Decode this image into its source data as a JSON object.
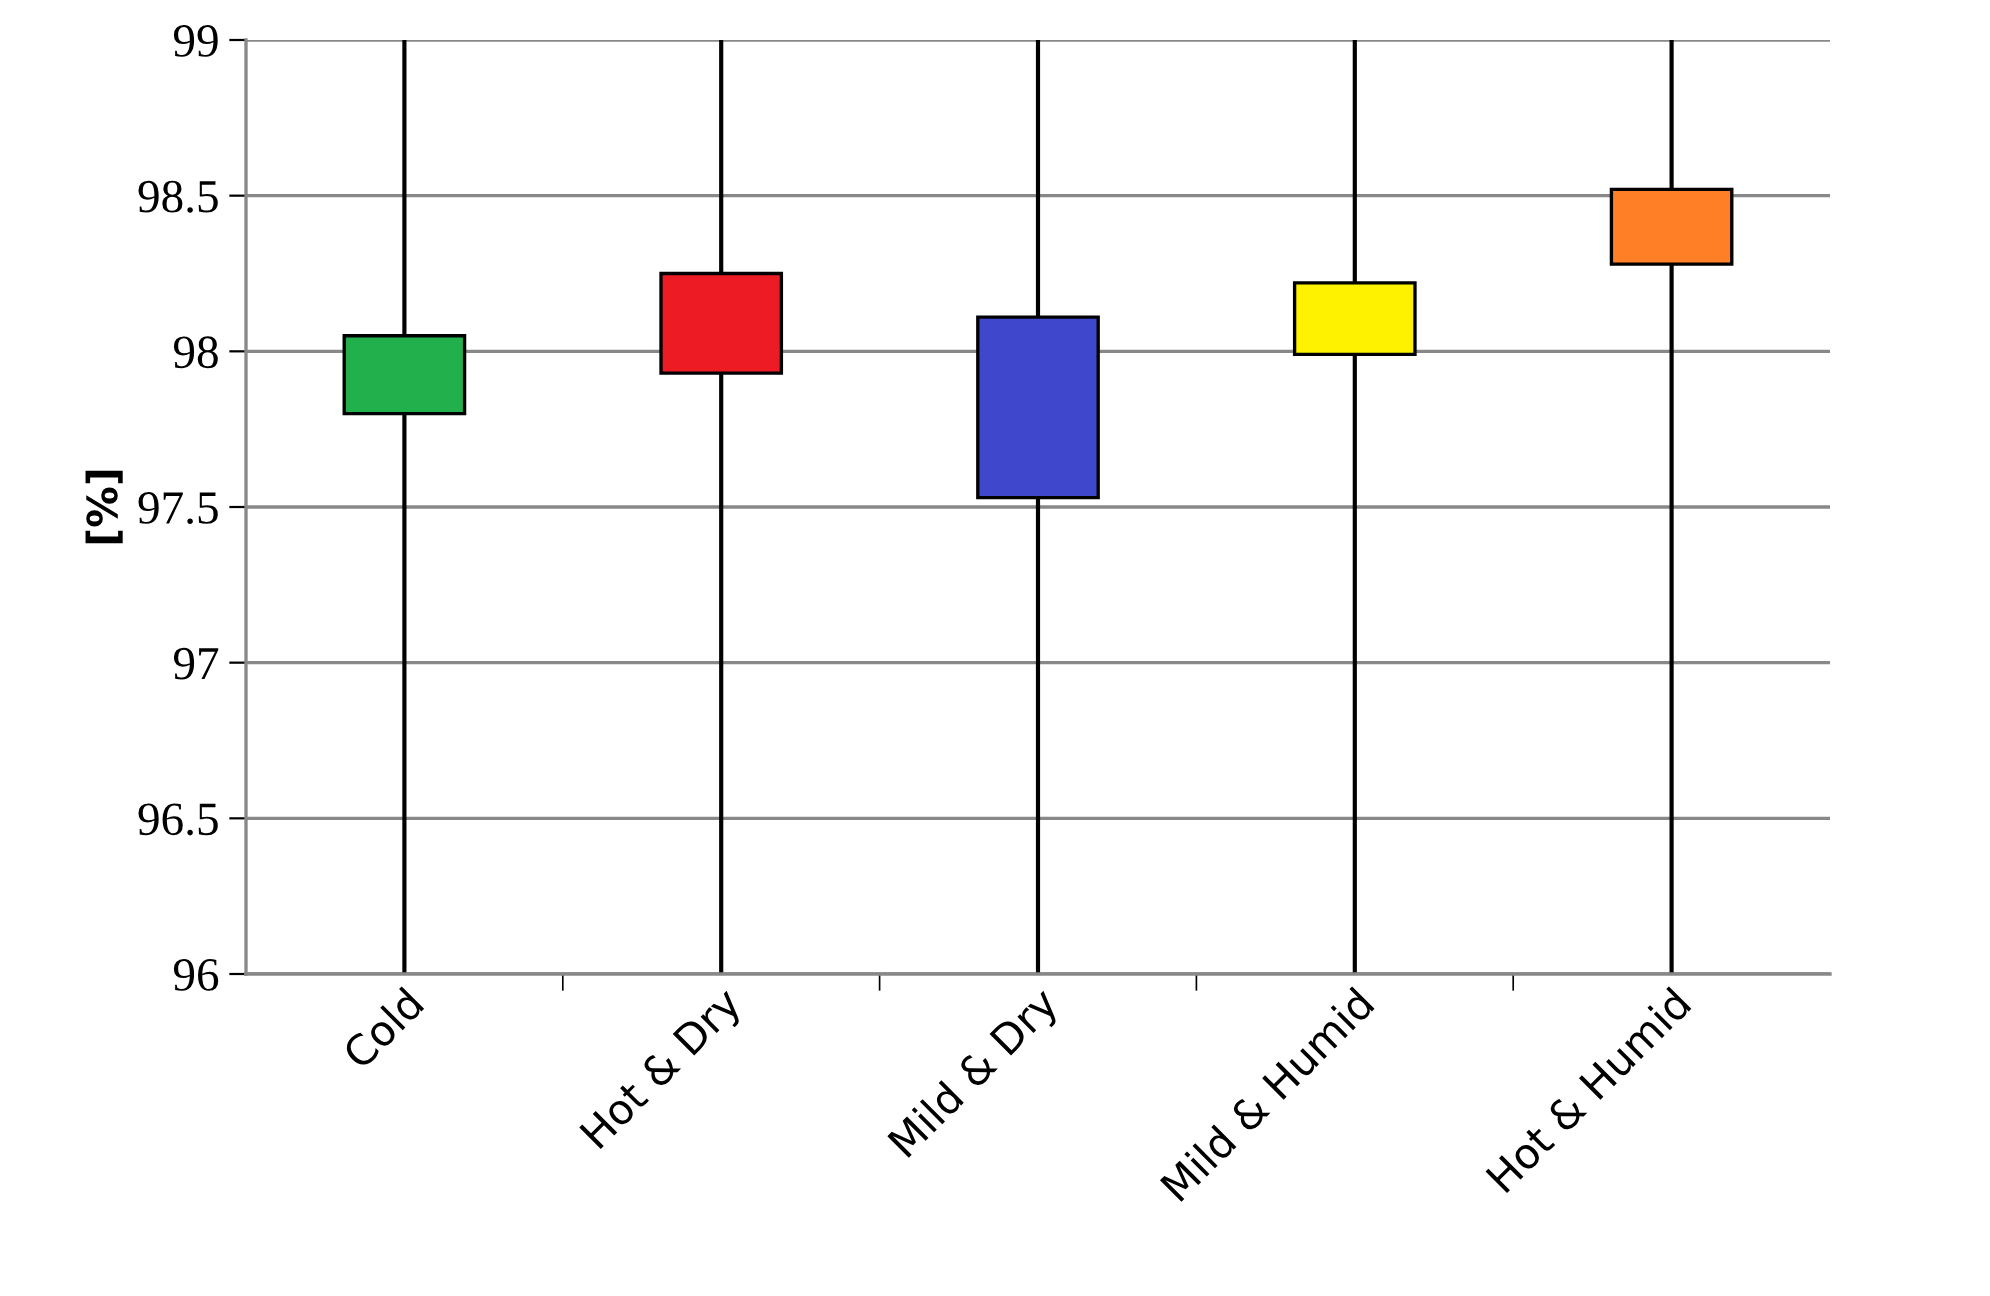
{
  "chart_data": {
    "type": "bar",
    "ylabel": "[%]",
    "categories": [
      "Cold",
      "Hot & Dry",
      "Mild & Dry",
      "Mild & Humid",
      "Hot & Humid"
    ],
    "base": [
      97.8,
      97.93,
      97.53,
      97.99,
      98.28
    ],
    "values": [
      0.25,
      0.32,
      0.58,
      0.23,
      0.24
    ],
    "colors": [
      "#22b04c",
      "#ed1c24",
      "#3f48cc",
      "#fff200",
      "#ff7f27"
    ],
    "errors": [
      [
        96,
        99
      ],
      [
        96,
        99
      ],
      [
        96,
        99
      ],
      [
        96,
        99
      ],
      [
        96,
        99
      ]
    ],
    "ylim": [
      96,
      99
    ],
    "yticks": [
      96,
      96.5,
      97,
      97.5,
      98,
      98.5,
      99
    ],
    "grid": "y"
  }
}
